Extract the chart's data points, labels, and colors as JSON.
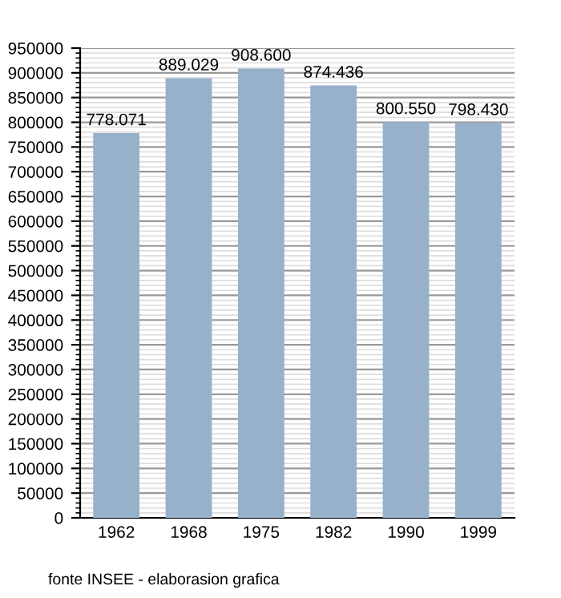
{
  "chart_data": {
    "type": "bar",
    "categories": [
      "1962",
      "1968",
      "1975",
      "1982",
      "1990",
      "1999"
    ],
    "values": [
      778071,
      889029,
      908600,
      874436,
      800550,
      798430
    ],
    "value_labels": [
      "778.071",
      "889.029",
      "908.600",
      "874.436",
      "800.550",
      "798.430"
    ],
    "color": "#98b1cb",
    "ylim": [
      0,
      950000
    ],
    "yticks": [
      0,
      50000,
      100000,
      150000,
      200000,
      250000,
      300000,
      350000,
      400000,
      450000,
      500000,
      550000,
      600000,
      650000,
      700000,
      750000,
      800000,
      850000,
      900000,
      950000
    ],
    "grid": "y",
    "annotations": [
      "fonte INSEE - elaborasion grafica"
    ]
  }
}
